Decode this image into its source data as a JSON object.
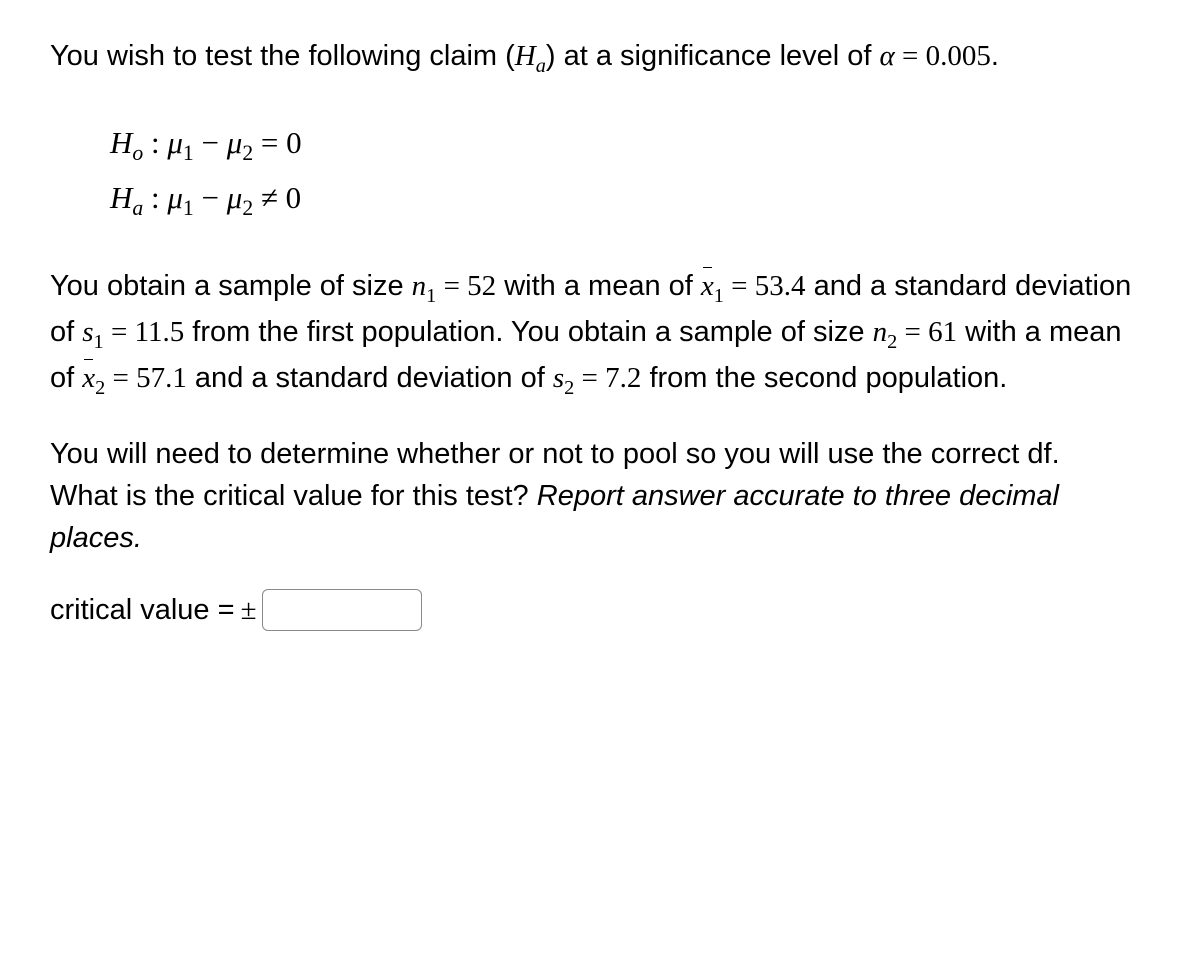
{
  "problem": {
    "intro_part1": "You wish to test the following claim (",
    "intro_H": "H",
    "intro_sub_a": "a",
    "intro_part2": ") at a significance level of ",
    "alpha_sym": "α",
    "equals": " = ",
    "alpha_val": "0.005",
    "period": "."
  },
  "hypotheses": {
    "H_sym": "H",
    "sub_o": "o",
    "sub_a": "a",
    "colon": " : ",
    "mu": "μ",
    "sub1": "1",
    "sub2": "2",
    "minus": " − ",
    "eq_zero": " = 0",
    "neq_zero": " ≠ 0"
  },
  "sample": {
    "part1": "You obtain a sample of size ",
    "n": "n",
    "sub1": "1",
    "eq": " = ",
    "n1_val": "52",
    "part2": " with a mean of ",
    "xbar": "x",
    "x1_val": "53.4",
    "part3": " and a standard deviation of ",
    "s": "s",
    "s1_val": "11.5",
    "part4": " from the first population. You obtain a sample of size ",
    "sub2": "2",
    "n2_val": "61",
    "part5": " with a mean of ",
    "x2_val": "57.1",
    "s2_val": "7.2",
    "part6": " from the second population."
  },
  "question": {
    "pool_text": "You will need to determine whether or not to pool so you will use the correct df.",
    "crit_q": "What is the critical value for this test? ",
    "instr": "Report answer accurate to three decimal places."
  },
  "answer": {
    "label": "critical value = ",
    "pm": "±"
  },
  "styling": {
    "font_size_body": 29,
    "font_size_math": 31,
    "text_color": "#000000",
    "background": "#ffffff",
    "input_border": "#8a8a8a",
    "input_width": 160,
    "input_height": 42
  }
}
